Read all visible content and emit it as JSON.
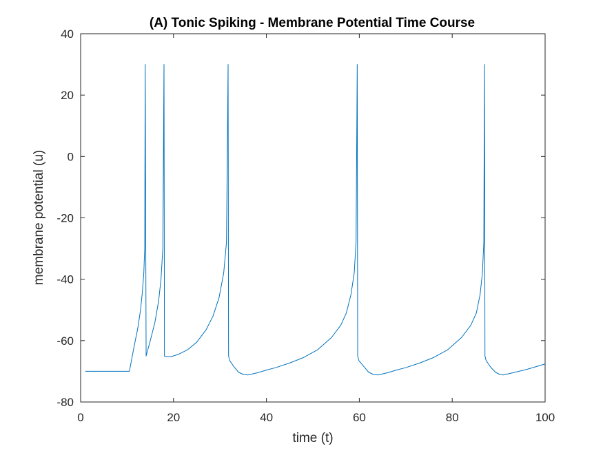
{
  "chart_data": {
    "type": "line",
    "title": "(A) Tonic Spiking - Membrane Potential Time Course",
    "xlabel": "time (t)",
    "ylabel": "membrane potential (u)",
    "xlim": [
      0,
      100
    ],
    "ylim": [
      -80,
      40
    ],
    "xticks": [
      0,
      20,
      40,
      60,
      80,
      100
    ],
    "yticks": [
      -80,
      -60,
      -40,
      -20,
      0,
      20,
      40
    ],
    "xtick_labels": [
      "0",
      "20",
      "40",
      "60",
      "80",
      "100"
    ],
    "ytick_labels": [
      "-80",
      "-60",
      "-40",
      "-20",
      "0",
      "20",
      "40"
    ],
    "grid": false,
    "line_color": "#0072BD",
    "axis_color": "#262626",
    "series": [
      {
        "name": "membrane potential",
        "x": [
          1,
          10.5,
          11.5,
          12.3,
          12.9,
          13.3,
          13.6,
          13.8,
          13.9,
          14.1,
          15.0,
          16.0,
          16.8,
          17.3,
          17.7,
          17.95,
          18.05,
          18.15,
          19.5,
          21,
          23,
          25,
          27,
          28.5,
          29.8,
          30.8,
          31.4,
          31.75,
          31.85,
          32.1,
          33,
          34,
          35,
          36,
          38,
          40,
          42,
          45,
          48,
          51,
          54,
          56,
          57.2,
          58.2,
          58.9,
          59.3,
          59.55,
          59.65,
          59.9,
          61,
          62,
          63,
          64,
          66,
          68,
          70,
          73,
          76,
          79,
          82,
          84,
          85.2,
          86.0,
          86.5,
          86.8,
          86.95,
          87.05,
          87.3,
          88.2,
          89.3,
          90.2,
          91,
          93,
          96,
          100
        ],
        "y": [
          -70,
          -70,
          -62,
          -56,
          -50,
          -44,
          -38,
          -30,
          30,
          -65,
          -60,
          -54,
          -47,
          -40,
          -30,
          30,
          -65,
          -65.2,
          -65.2,
          -64.5,
          -63,
          -60.5,
          -56.5,
          -52,
          -46,
          -38,
          -28,
          30,
          -65,
          -66.5,
          -68.5,
          -70.3,
          -71,
          -71.2,
          -70.5,
          -69.6,
          -68.8,
          -67.3,
          -65.5,
          -63,
          -59,
          -55,
          -51,
          -45,
          -38,
          -28,
          30,
          -65,
          -66.5,
          -68.5,
          -70.3,
          -71,
          -71.2,
          -70.5,
          -69.6,
          -68.8,
          -67.3,
          -65.5,
          -63,
          -59,
          -55,
          -51,
          -45,
          -38,
          -28,
          30,
          -65,
          -66.5,
          -68.5,
          -70.3,
          -71,
          -71.2,
          -70.5,
          -69.4,
          -67.6
        ]
      }
    ]
  }
}
